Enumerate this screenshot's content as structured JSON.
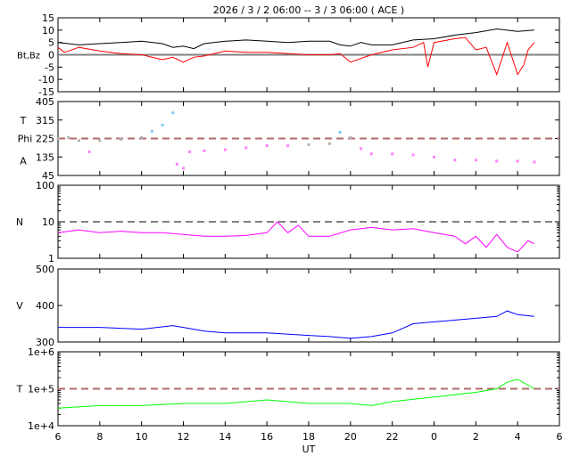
{
  "chart_data": {
    "type": "line",
    "title": "2026 /  3 /  2   06:00 -- 3 /  3   06:00 ( ACE )",
    "xlabel": "UT",
    "x_units": "hours since 2026/3/2 06:00",
    "xlim": [
      0,
      24
    ],
    "x_tick_labels": [
      "6",
      "8",
      "10",
      "12",
      "14",
      "16",
      "18",
      "20",
      "22",
      "0",
      "2",
      "4",
      "6"
    ],
    "colors": {
      "bt": "#000000",
      "bz": "#ff0000",
      "phi_toward": "#ff80ff",
      "phi_mixed": "#b4b4b4",
      "phi_away": "#80c8f0",
      "n": "#ff00ff",
      "v": "#0000ff",
      "t": "#00ff00",
      "ref_line": "#b06a6a",
      "zero_line": "#808080"
    },
    "panels": [
      {
        "name": "magnetic-field",
        "ylabel": "Bt,Bz",
        "scale": "linear",
        "ylim": [
          -15,
          15
        ],
        "y_tick_labels": [
          "15",
          "10",
          "5",
          "0",
          "-5",
          "-10",
          "-15"
        ],
        "y_ticks": [
          15,
          10,
          5,
          0,
          -5,
          -10,
          -15
        ],
        "reference": {
          "value": 0,
          "style": "solid"
        },
        "series": [
          {
            "name": "Bt",
            "color_key": "bt",
            "x": [
              0,
              0.5,
              1,
              2,
              3,
              4,
              5,
              5.5,
              6,
              6.5,
              7,
              8,
              9,
              10,
              11,
              12,
              13,
              13.5,
              14,
              14.5,
              15,
              16,
              17,
              18,
              19,
              20,
              21,
              22,
              22.8
            ],
            "y": [
              5,
              4.5,
              4,
              4.5,
              5,
              5.5,
              4.5,
              3,
              3.5,
              2.5,
              4.5,
              5.5,
              6,
              5.5,
              5,
              5.5,
              5.5,
              4,
              3.5,
              5,
              4,
              4,
              6,
              6.5,
              8,
              9,
              10.5,
              9.5,
              10
            ]
          },
          {
            "name": "Bz",
            "color_key": "bz",
            "x": [
              0,
              0.3,
              0.5,
              1,
              2,
              3,
              4,
              5,
              5.5,
              6,
              6.5,
              7,
              8,
              9,
              10,
              11,
              12,
              13,
              13.5,
              14,
              15,
              16,
              17,
              17.5,
              17.7,
              18,
              19,
              19.5,
              20,
              20.5,
              21,
              21.5,
              22,
              22.3,
              22.5,
              22.8
            ],
            "y": [
              3,
              1,
              1.5,
              3,
              1.5,
              0.5,
              0,
              -2,
              -1,
              -3,
              -1,
              -0.5,
              1.5,
              1,
              1,
              0.5,
              0,
              0,
              0.5,
              -3,
              0,
              2,
              3,
              5,
              -5,
              5,
              6.5,
              7,
              2,
              3,
              -8,
              5,
              -8,
              -4,
              2,
              5
            ]
          }
        ]
      },
      {
        "name": "phi-angle",
        "ylabel_lines": [
          "T",
          "Phi",
          "A"
        ],
        "scale": "linear",
        "ylim": [
          45,
          405
        ],
        "y_tick_labels": [
          "405",
          "315",
          "225",
          "135",
          "45"
        ],
        "y_ticks": [
          405,
          315,
          225,
          135,
          45
        ],
        "reference": {
          "value": 225,
          "style": "dashed",
          "color_key": "ref_line"
        },
        "series": [
          {
            "name": "Phi",
            "type": "scatter",
            "x": [
              0,
              0.5,
              1,
              1.5,
              2,
              3,
              4,
              4.5,
              5,
              5.5,
              5.7,
              6,
              6.3,
              7,
              8,
              9,
              10,
              11,
              12,
              13,
              13.5,
              14,
              14.5,
              15,
              16,
              17,
              18,
              19,
              20,
              21,
              22,
              22.8
            ],
            "y": [
              225,
              230,
              215,
              160,
              215,
              220,
              230,
              260,
              290,
              350,
              100,
              80,
              160,
              165,
              170,
              180,
              190,
              190,
              195,
              200,
              255,
              230,
              175,
              150,
              150,
              145,
              135,
              120,
              120,
              115,
              115,
              110
            ]
          }
        ]
      },
      {
        "name": "density",
        "ylabel": "N",
        "scale": "log",
        "ylim": [
          1,
          100
        ],
        "y_tick_labels": [
          "100",
          "10",
          "1"
        ],
        "y_ticks": [
          100,
          10,
          1
        ],
        "reference": {
          "value": 10,
          "style": "dashed",
          "color_key": "bt"
        },
        "series": [
          {
            "name": "N",
            "color_key": "n",
            "x": [
              0,
              1,
              2,
              3,
              4,
              5,
              6,
              7,
              8,
              9,
              10,
              10.5,
              11,
              11.5,
              12,
              13,
              14,
              15,
              16,
              17,
              18,
              19,
              19.5,
              20,
              20.5,
              21,
              21.5,
              22,
              22.5,
              22.8
            ],
            "y": [
              5,
              6,
              5,
              5.5,
              5,
              5,
              4.5,
              4,
              4,
              4.2,
              5,
              10,
              5,
              8,
              4,
              4,
              6,
              7,
              6,
              6.5,
              5,
              4,
              2.5,
              4,
              2,
              4.5,
              2,
              1.5,
              3,
              2.5
            ]
          }
        ]
      },
      {
        "name": "speed",
        "ylabel": "V",
        "scale": "linear",
        "ylim": [
          300,
          500
        ],
        "y_tick_labels": [
          "500",
          "400",
          "300"
        ],
        "y_ticks": [
          500,
          400,
          300
        ],
        "series": [
          {
            "name": "V",
            "color_key": "v",
            "x": [
              0,
              2,
              4,
              5.5,
              6,
              7,
              8,
              10,
              12,
              13,
              14,
              15,
              16,
              17,
              18,
              19,
              20,
              21,
              21.5,
              22,
              22.8
            ],
            "y": [
              340,
              340,
              335,
              345,
              340,
              330,
              325,
              325,
              318,
              315,
              310,
              315,
              325,
              350,
              355,
              360,
              365,
              370,
              385,
              375,
              370
            ]
          }
        ]
      },
      {
        "name": "temperature",
        "ylabel": "T",
        "scale": "log",
        "ylim": [
          10000,
          1000000
        ],
        "y_tick_labels": [
          "1e+6",
          "1e+5",
          "1e+4"
        ],
        "y_ticks": [
          1000000,
          100000,
          10000
        ],
        "reference": {
          "value": 100000,
          "style": "dashed",
          "color_key": "ref_line"
        },
        "series": [
          {
            "name": "T",
            "color_key": "t",
            "x": [
              0,
              2,
              4,
              6,
              8,
              10,
              12,
              14,
              15,
              16,
              18,
              20,
              21,
              21.5,
              22,
              22.8
            ],
            "y": [
              30000,
              35000,
              35000,
              40000,
              40000,
              50000,
              40000,
              40000,
              35000,
              45000,
              60000,
              80000,
              100000,
              150000,
              180000,
              100000
            ]
          }
        ]
      }
    ]
  }
}
